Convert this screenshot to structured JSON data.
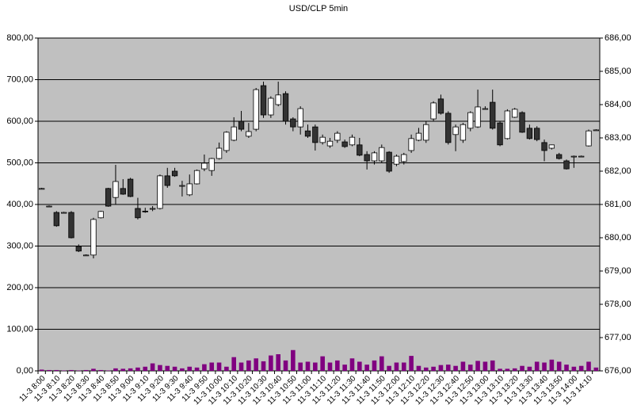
{
  "chart_data": {
    "type": "candlestick",
    "title": "USD/CLP   5min",
    "categories": [
      "11-3 8:00",
      null,
      "11-3 8:10",
      null,
      "11-3 8:20",
      null,
      "11-3 8:30",
      null,
      "11-3 8:40",
      null,
      "11-3 8:50",
      null,
      "11-3 9:00",
      null,
      "11-3 9:10",
      null,
      "11-3 9:20",
      null,
      "11-3 9:30",
      null,
      "11-3 9:40",
      null,
      "11-3 9:50",
      null,
      "11-3 10:00",
      null,
      "11-3 10:10",
      null,
      "11-3 10:20",
      null,
      "11-3 10:30",
      null,
      "11-3 10:40",
      null,
      "11-3 10:50",
      null,
      "11-3 11:00",
      null,
      "11-3 11:10",
      null,
      "11-3 11:20",
      null,
      "11-3 11:30",
      null,
      "11-3 11:40",
      null,
      "11-3 11:50",
      null,
      "11-3 12:00",
      null,
      "11-3 12:10",
      null,
      "11-3 12:20",
      null,
      "11-3 12:30",
      null,
      "11-3 12:40",
      null,
      "11-3 12:50",
      null,
      "11-3 13:00",
      null,
      "11-3 13:10",
      null,
      "11-3 13:20",
      null,
      "11-3 13:30",
      null,
      "11-3 13:40",
      null,
      "11-3 13:50",
      null,
      "11-3 14:00",
      null,
      "11-3 14:10",
      null
    ],
    "open": [
      681.48,
      680.95,
      680.76,
      680.76,
      680.76,
      679.74,
      679.48,
      679.48,
      680.6,
      681.48,
      681.21,
      681.48,
      681.76,
      680.88,
      680.8,
      680.88,
      680.88,
      681.86,
      682.0,
      681.57,
      681.29,
      681.62,
      682.07,
      682.02,
      682.38,
      682.62,
      682.93,
      683.5,
      683.05,
      683.26,
      684.57,
      683.69,
      684.0,
      684.33,
      683.57,
      683.33,
      683.21,
      683.33,
      682.86,
      682.76,
      682.93,
      682.88,
      682.79,
      682.79,
      682.5,
      682.31,
      682.31,
      682.57,
      682.21,
      682.29,
      682.62,
      682.93,
      682.93,
      683.57,
      684.17,
      683.74,
      683.1,
      682.93,
      683.29,
      683.33,
      683.88,
      684.07,
      683.45,
      682.98,
      683.62,
      683.76,
      683.29,
      683.29,
      682.86,
      682.69,
      682.5,
      682.31,
      682.45,
      682.45,
      682.76,
      683.24
    ],
    "high": [
      681.5,
      680.97,
      680.8,
      680.78,
      680.8,
      679.8,
      679.5,
      680.6,
      680.81,
      681.5,
      682.19,
      681.76,
      681.8,
      681.2,
      680.9,
      680.95,
      681.9,
      682.1,
      682.1,
      681.71,
      681.9,
      682.05,
      682.5,
      682.4,
      682.86,
      683.2,
      683.62,
      683.81,
      683.45,
      684.5,
      684.69,
      684.25,
      684.69,
      684.4,
      683.62,
      683.95,
      683.4,
      683.4,
      683.1,
      683.0,
      683.2,
      682.95,
      683.1,
      683.0,
      682.6,
      682.6,
      682.8,
      682.6,
      682.5,
      682.55,
      683.1,
      683.3,
      683.5,
      684.1,
      684.3,
      683.8,
      683.4,
      683.45,
      683.8,
      684.45,
      683.95,
      684.45,
      683.5,
      683.86,
      683.9,
      683.8,
      683.4,
      683.35,
      682.95,
      682.8,
      682.55,
      682.35,
      682.47,
      682.47,
      683.25,
      683.26
    ],
    "low": [
      681.45,
      680.93,
      680.33,
      680.74,
      679.98,
      679.57,
      679.46,
      679.38,
      680.58,
      680.93,
      681.0,
      681.29,
      681.22,
      680.55,
      680.75,
      680.8,
      680.85,
      681.5,
      681.83,
      681.24,
      681.25,
      681.6,
      682.0,
      681.86,
      682.35,
      682.55,
      682.9,
      683.2,
      683.0,
      683.2,
      683.6,
      683.6,
      683.95,
      683.4,
      683.2,
      683.1,
      683.0,
      682.62,
      682.8,
      682.7,
      682.85,
      682.7,
      682.75,
      682.45,
      682.05,
      682.2,
      682.25,
      681.95,
      682.15,
      682.2,
      682.55,
      682.9,
      682.85,
      683.5,
      683.7,
      682.8,
      682.6,
      682.85,
      683.2,
      683.3,
      683.85,
      683.25,
      682.75,
      682.95,
      683.6,
      683.15,
      682.95,
      682.9,
      682.3,
      682.65,
      682.35,
      682.05,
      682.1,
      682.43,
      682.74,
      683.22
    ],
    "close": [
      681.48,
      680.95,
      680.36,
      680.76,
      680.0,
      679.6,
      679.48,
      680.55,
      680.79,
      680.95,
      681.69,
      681.31,
      681.24,
      680.6,
      680.78,
      680.88,
      681.86,
      681.57,
      681.86,
      681.57,
      681.62,
      682.02,
      682.24,
      682.38,
      682.69,
      683.17,
      683.33,
      683.26,
      683.19,
      684.45,
      683.69,
      684.19,
      684.29,
      683.5,
      683.33,
      683.88,
      683.05,
      682.86,
      683.02,
      682.9,
      683.14,
      682.74,
      683.02,
      682.48,
      682.31,
      682.55,
      682.71,
      682.0,
      682.45,
      682.5,
      682.98,
      683.14,
      683.4,
      684.05,
      683.74,
      682.86,
      683.33,
      683.4,
      683.76,
      683.93,
      683.88,
      683.29,
      682.79,
      683.81,
      683.86,
      683.17,
      682.98,
      682.95,
      682.62,
      682.79,
      682.38,
      682.07,
      682.45,
      682.45,
      683.21,
      683.24
    ],
    "volume": [
      3,
      2,
      2,
      1,
      2,
      1,
      2,
      5,
      2,
      1,
      6,
      5,
      6,
      8,
      10,
      18,
      14,
      12,
      10,
      6,
      10,
      8,
      16,
      20,
      20,
      10,
      33,
      20,
      25,
      30,
      23,
      37,
      40,
      25,
      50,
      20,
      22,
      20,
      35,
      20,
      25,
      15,
      30,
      22,
      15,
      25,
      35,
      12,
      20,
      20,
      36,
      12,
      8,
      10,
      14,
      15,
      12,
      22,
      15,
      24,
      22,
      25,
      5,
      5,
      6,
      12,
      10,
      22,
      20,
      27,
      22,
      15,
      10,
      12,
      22,
      8
    ],
    "ylim": [
      0,
      800
    ],
    "yticks": [
      {
        "value": 0,
        "label": "0,00"
      },
      {
        "value": 100,
        "label": "100,00"
      },
      {
        "value": 200,
        "label": "200,00"
      },
      {
        "value": 300,
        "label": "300,00"
      },
      {
        "value": 400,
        "label": "400,00"
      },
      {
        "value": 500,
        "label": "500,00"
      },
      {
        "value": 600,
        "label": "600,00"
      },
      {
        "value": 700,
        "label": "700,00"
      },
      {
        "value": 800,
        "label": "800,00"
      }
    ],
    "y2lim": [
      676,
      686
    ],
    "y2ticks": [
      {
        "value": 676,
        "label": "676,00"
      },
      {
        "value": 677,
        "label": "677,00"
      },
      {
        "value": 678,
        "label": "678,00"
      },
      {
        "value": 679,
        "label": "679,00"
      },
      {
        "value": 680,
        "label": "680,00"
      },
      {
        "value": 681,
        "label": "681,00"
      },
      {
        "value": 682,
        "label": "682,00"
      },
      {
        "value": 683,
        "label": "683,00"
      },
      {
        "value": 684,
        "label": "684,00"
      },
      {
        "value": 685,
        "label": "685,00"
      },
      {
        "value": 686,
        "label": "686,00"
      }
    ],
    "grid": true,
    "up_color": "#ffffff",
    "down_color": "#333333",
    "volume_color": "#800080",
    "plot_background": "#c0c0c0"
  }
}
